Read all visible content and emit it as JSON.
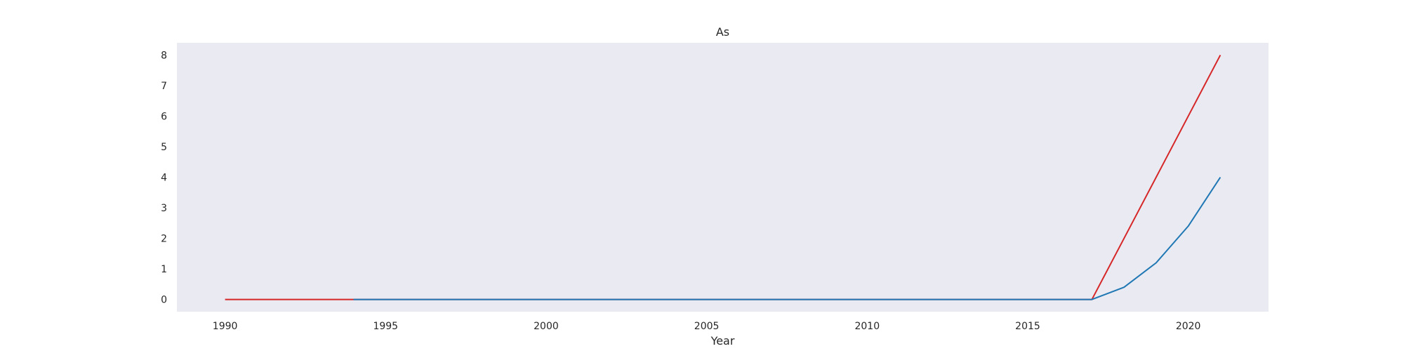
{
  "chart_data": {
    "type": "line",
    "title": "As",
    "xlabel": "Year",
    "ylabel": "",
    "xlim": [
      1988.5,
      2022.5
    ],
    "ylim": [
      -0.4,
      8.4
    ],
    "xticks": [
      1990,
      1995,
      2000,
      2005,
      2010,
      2015,
      2020
    ],
    "yticks": [
      0,
      1,
      2,
      3,
      4,
      5,
      6,
      7,
      8
    ],
    "grid": false,
    "background": "#eaeaf2",
    "series": [
      {
        "color": "#d62728",
        "x": [
          1990,
          1991,
          1992,
          1993,
          1994,
          1995,
          1996,
          1997,
          1998,
          1999,
          2000,
          2001,
          2002,
          2003,
          2004,
          2005,
          2006,
          2007,
          2008,
          2009,
          2010,
          2011,
          2012,
          2013,
          2014,
          2015,
          2016,
          2017,
          2018,
          2019,
          2020,
          2021
        ],
        "y": [
          0,
          0,
          0,
          0,
          0,
          0,
          0,
          0,
          0,
          0,
          0,
          0,
          0,
          0,
          0,
          0,
          0,
          0,
          0,
          0,
          0,
          0,
          0,
          0,
          0,
          0,
          0,
          0,
          2,
          4,
          6,
          8
        ]
      },
      {
        "color": "#1f77b4",
        "x": [
          1994,
          1995,
          1996,
          1997,
          1998,
          1999,
          2000,
          2001,
          2002,
          2003,
          2004,
          2005,
          2006,
          2007,
          2008,
          2009,
          2010,
          2011,
          2012,
          2013,
          2014,
          2015,
          2016,
          2017,
          2018,
          2019,
          2020,
          2021
        ],
        "y": [
          0,
          0,
          0,
          0,
          0,
          0,
          0,
          0,
          0,
          0,
          0,
          0,
          0,
          0,
          0,
          0,
          0,
          0,
          0,
          0,
          0,
          0,
          0,
          0,
          0.4,
          1.2,
          2.4,
          4
        ]
      }
    ]
  }
}
